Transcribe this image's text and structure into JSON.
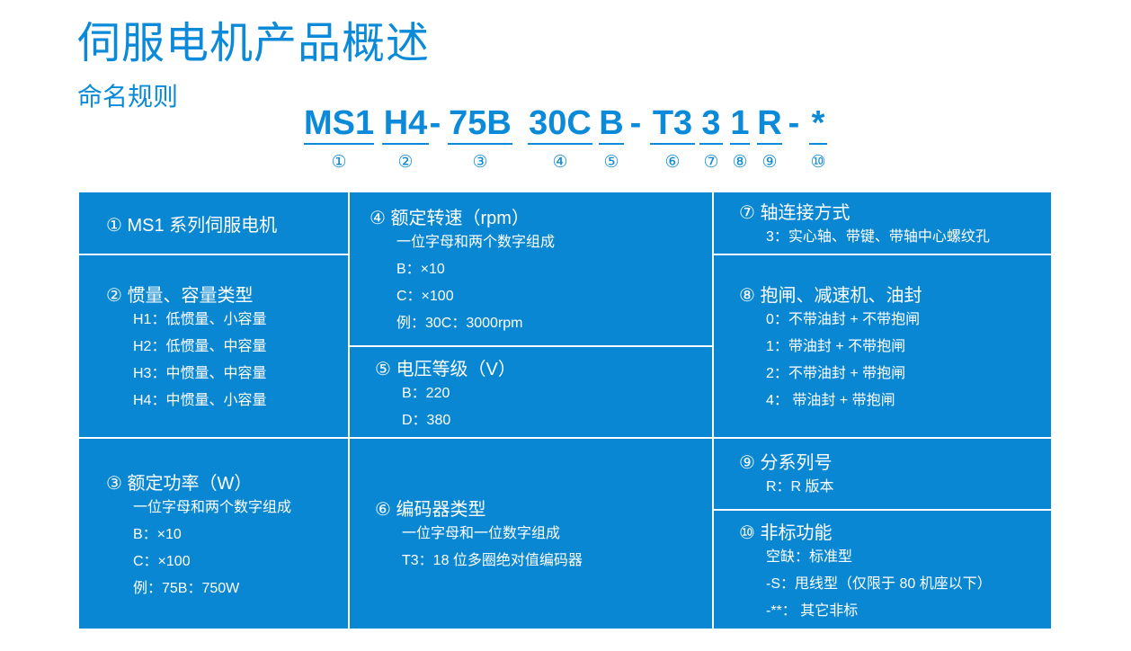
{
  "title": "伺服电机产品概述",
  "subtitle": "命名规则",
  "code_segments": [
    {
      "code": "MS1",
      "num": "①"
    },
    {
      "code": "H4",
      "num": "②"
    },
    {
      "code": "-",
      "num": ""
    },
    {
      "code": "75B",
      "num": "③"
    },
    {
      "code": "30C",
      "num": "④"
    },
    {
      "code": "B",
      "num": "⑤"
    },
    {
      "code": "-",
      "num": ""
    },
    {
      "code": "T3",
      "num": "⑥"
    },
    {
      "code": "3",
      "num": "⑦"
    },
    {
      "code": "1",
      "num": "⑧"
    },
    {
      "code": "R",
      "num": "⑨"
    },
    {
      "code": "-",
      "num": ""
    },
    {
      "code": "*",
      "num": "⑩"
    }
  ],
  "cells": [
    {
      "heading": "① MS1 系列伺服电机",
      "lines": []
    },
    {
      "heading": "② 惯量、容量类型",
      "lines": [
        "H1：低惯量、小容量",
        "H2：低惯量、中容量",
        "H3：中惯量、中容量",
        "H4：中惯量、小容量"
      ]
    },
    {
      "heading": "③ 额定功率（W）",
      "lines": [
        "一位字母和两个数字组成",
        "B：×10",
        "C：×100",
        "例：75B：750W"
      ]
    },
    {
      "heading": "④ 额定转速（rpm）",
      "lines": [
        "一位字母和两个数字组成",
        "B：×10",
        "C：×100",
        "例：30C：3000rpm"
      ]
    },
    {
      "heading": "⑤ 电压等级（V）",
      "lines": [
        "B：220",
        "D：380"
      ]
    },
    {
      "heading": "⑥ 编码器类型",
      "lines": [
        "一位字母和一位数字组成",
        "T3：18 位多圈绝对值编码器"
      ]
    },
    {
      "heading": "⑦ 轴连接方式",
      "lines": [
        "3：实心轴、带键、带轴中心螺纹孔"
      ]
    },
    {
      "heading": "⑧ 抱闸、减速机、油封",
      "lines": [
        "0：不带油封 + 不带抱闸",
        "1：带油封 + 不带抱闸",
        "2：不带油封 + 带抱闸",
        "4： 带油封 + 带抱闸"
      ]
    },
    {
      "heading": "⑨ 分系列号",
      "lines": [
        "R：R 版本"
      ]
    },
    {
      "heading": "⑩ 非标功能",
      "lines": [
        "空缺：标准型",
        "-S：甩线型（仅限于 80 机座以下）",
        "-**： 其它非标"
      ]
    }
  ],
  "colors": {
    "accent": "#0a8ad8",
    "cell_bg": "#0a87d3"
  }
}
